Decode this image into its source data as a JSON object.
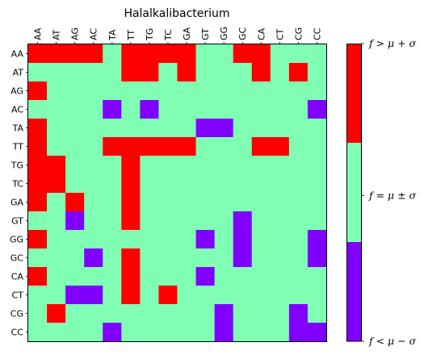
{
  "chart_data": {
    "type": "heatmap",
    "title": "Halalkalibacterium",
    "xlabel": "",
    "ylabel": "",
    "categories_x": [
      "AA",
      "AT",
      "AG",
      "AC",
      "TA",
      "TT",
      "TG",
      "TC",
      "GA",
      "GT",
      "GG",
      "GC",
      "CA",
      "CT",
      "CG",
      "CC"
    ],
    "categories_y": [
      "AA",
      "AT",
      "AG",
      "AC",
      "TA",
      "TT",
      "TG",
      "TC",
      "GA",
      "GT",
      "GG",
      "GC",
      "CA",
      "CT",
      "CG",
      "CC"
    ],
    "value_scale": "-1 = below mean minus sigma, 0 = within mean plus/minus sigma, 1 = above mean plus sigma",
    "matrix": [
      [
        1,
        1,
        1,
        1,
        0,
        1,
        1,
        1,
        1,
        0,
        0,
        1,
        1,
        0,
        0,
        0
      ],
      [
        0,
        0,
        0,
        0,
        0,
        1,
        1,
        0,
        1,
        0,
        0,
        0,
        1,
        0,
        1,
        0
      ],
      [
        1,
        0,
        0,
        0,
        0,
        0,
        0,
        0,
        0,
        0,
        0,
        0,
        0,
        0,
        0,
        0
      ],
      [
        0,
        0,
        0,
        0,
        -1,
        0,
        -1,
        0,
        0,
        0,
        0,
        0,
        0,
        0,
        0,
        -1
      ],
      [
        1,
        0,
        0,
        0,
        0,
        0,
        0,
        0,
        0,
        -1,
        -1,
        0,
        0,
        0,
        0,
        0
      ],
      [
        1,
        0,
        0,
        0,
        1,
        1,
        1,
        1,
        1,
        0,
        0,
        0,
        1,
        1,
        0,
        0
      ],
      [
        1,
        1,
        0,
        0,
        0,
        1,
        0,
        0,
        0,
        0,
        0,
        0,
        0,
        0,
        0,
        0
      ],
      [
        1,
        1,
        0,
        0,
        0,
        1,
        0,
        0,
        0,
        0,
        0,
        0,
        0,
        0,
        0,
        0
      ],
      [
        1,
        0,
        1,
        0,
        0,
        1,
        0,
        0,
        0,
        0,
        0,
        0,
        0,
        0,
        0,
        0
      ],
      [
        0,
        0,
        -1,
        0,
        0,
        1,
        0,
        0,
        0,
        0,
        0,
        -1,
        0,
        0,
        0,
        0
      ],
      [
        1,
        0,
        0,
        0,
        0,
        0,
        0,
        0,
        0,
        -1,
        0,
        -1,
        0,
        0,
        0,
        -1
      ],
      [
        0,
        0,
        0,
        -1,
        0,
        1,
        0,
        0,
        0,
        0,
        0,
        -1,
        0,
        0,
        0,
        -1
      ],
      [
        1,
        0,
        0,
        0,
        0,
        1,
        0,
        0,
        0,
        -1,
        0,
        0,
        0,
        0,
        0,
        0
      ],
      [
        0,
        0,
        -1,
        -1,
        0,
        1,
        0,
        1,
        0,
        0,
        0,
        0,
        0,
        0,
        0,
        0
      ],
      [
        0,
        1,
        0,
        0,
        0,
        0,
        0,
        0,
        0,
        0,
        -1,
        0,
        0,
        0,
        -1,
        0
      ],
      [
        0,
        0,
        0,
        0,
        -1,
        0,
        0,
        0,
        0,
        0,
        -1,
        0,
        0,
        0,
        -1,
        -1
      ]
    ],
    "colorbar": {
      "labels": [
        "f > μ + σ",
        "f = μ ± σ",
        "f < μ − σ"
      ],
      "levels": [
        1,
        0,
        -1
      ]
    },
    "colors": {
      "high": "#ff0000",
      "mid": "#80ffb4",
      "low": "#8000ff"
    }
  }
}
